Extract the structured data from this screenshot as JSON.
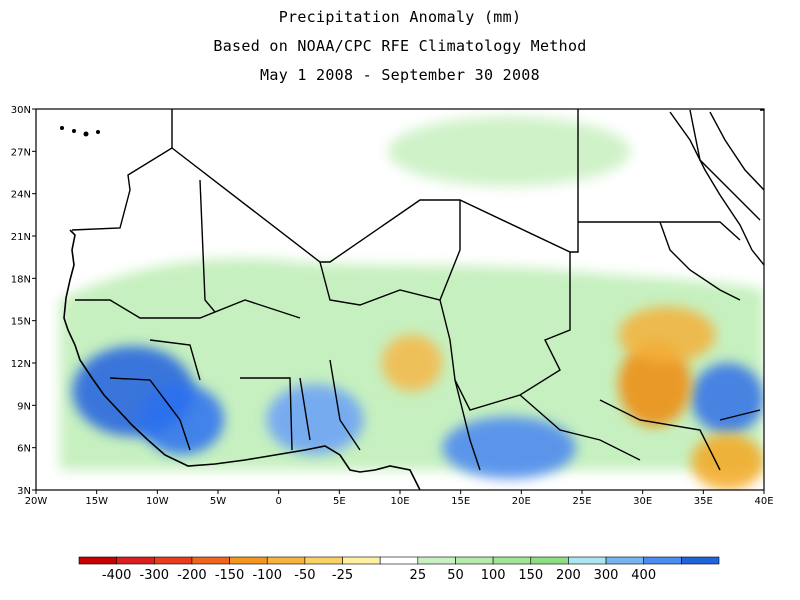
{
  "title": {
    "line1": "Precipitation Anomaly (mm)",
    "line2": "Based on NOAA/CPC RFE Climatology Method",
    "line3": "May 1 2008 - September 30 2008"
  },
  "map": {
    "lon_range": [
      -20,
      40
    ],
    "lat_range": [
      3,
      30
    ],
    "lat_ticks": [
      {
        "value": 30,
        "label": "30N"
      },
      {
        "value": 27,
        "label": "27N"
      },
      {
        "value": 24,
        "label": "24N"
      },
      {
        "value": 21,
        "label": "21N"
      },
      {
        "value": 18,
        "label": "18N"
      },
      {
        "value": 15,
        "label": "15N"
      },
      {
        "value": 12,
        "label": "12N"
      },
      {
        "value": 9,
        "label": "9N"
      },
      {
        "value": 6,
        "label": "6N"
      },
      {
        "value": 3,
        "label": "3N"
      }
    ],
    "lon_ticks": [
      {
        "value": -20,
        "label": "20W"
      },
      {
        "value": -15,
        "label": "15W"
      },
      {
        "value": -10,
        "label": "10W"
      },
      {
        "value": -5,
        "label": "5W"
      },
      {
        "value": 0,
        "label": "0"
      },
      {
        "value": 5,
        "label": "5E"
      },
      {
        "value": 10,
        "label": "10E"
      },
      {
        "value": 15,
        "label": "15E"
      },
      {
        "value": 20,
        "label": "20E"
      },
      {
        "value": 25,
        "label": "25E"
      },
      {
        "value": 30,
        "label": "30E"
      },
      {
        "value": 35,
        "label": "35E"
      },
      {
        "value": 40,
        "label": "40E"
      }
    ],
    "anomaly_regions": [
      {
        "lon": -12,
        "lat": 10,
        "rx": 5.0,
        "ry": 3.2,
        "color": "#2060e0"
      },
      {
        "lon": -8,
        "lat": 8,
        "rx": 3.5,
        "ry": 2.5,
        "color": "#2b6ff0"
      },
      {
        "lon": 3,
        "lat": 8,
        "rx": 4.0,
        "ry": 2.5,
        "color": "#6aa0f8"
      },
      {
        "lon": 19,
        "lat": 6,
        "rx": 5.5,
        "ry": 2.2,
        "color": "#4a86f2"
      },
      {
        "lon": 37,
        "lat": 9.5,
        "rx": 3.0,
        "ry": 2.5,
        "color": "#3070e8"
      },
      {
        "lon": 31,
        "lat": 10.5,
        "rx": 3.0,
        "ry": 3.0,
        "color": "#f08a10"
      },
      {
        "lon": 32,
        "lat": 14,
        "rx": 4.0,
        "ry": 2.0,
        "color": "#f4b13a"
      },
      {
        "lon": 11,
        "lat": 12,
        "rx": 2.5,
        "ry": 2.0,
        "color": "#f6b848"
      },
      {
        "lon": 37,
        "lat": 5,
        "rx": 3.0,
        "ry": 2.0,
        "color": "#f4a820"
      },
      {
        "lon": 19,
        "lat": 27,
        "rx": 10.0,
        "ry": 2.5,
        "color": "#c8f0c0"
      }
    ],
    "colorbar": {
      "colors": [
        "#c80000",
        "#dc1e1e",
        "#eb3c1e",
        "#f0641e",
        "#f4961e",
        "#f6b43c",
        "#fad264",
        "#fff0a0",
        "#ffffff",
        "#c8f0c0",
        "#b4ebaa",
        "#a0e696",
        "#8ce082",
        "#aae6f0",
        "#78b4f0",
        "#4a8cf0",
        "#1e64dc"
      ],
      "labels": [
        "-400",
        "-300",
        "-200",
        "-150",
        "-100",
        "-50",
        "-25",
        "25",
        "50",
        "100",
        "150",
        "200",
        "300",
        "400"
      ]
    }
  }
}
